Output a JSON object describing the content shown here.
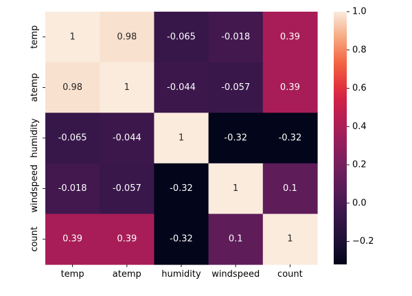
{
  "chart_data": {
    "type": "heatmap",
    "title": "",
    "xlabel": "",
    "ylabel": "",
    "x_categories": [
      "temp",
      "atemp",
      "humidity",
      "windspeed",
      "count"
    ],
    "y_categories": [
      "temp",
      "atemp",
      "humidity",
      "windspeed",
      "count"
    ],
    "values": [
      [
        1,
        0.98,
        -0.065,
        -0.018,
        0.39
      ],
      [
        0.98,
        1,
        -0.044,
        -0.057,
        0.39
      ],
      [
        -0.065,
        -0.044,
        1,
        -0.32,
        -0.32
      ],
      [
        -0.018,
        -0.057,
        -0.32,
        1,
        0.1
      ],
      [
        0.39,
        0.39,
        -0.32,
        0.1,
        1
      ]
    ],
    "annotations": [
      [
        "1",
        "0.98",
        "-0.065",
        "-0.018",
        "0.39"
      ],
      [
        "0.98",
        "1",
        "-0.044",
        "-0.057",
        "0.39"
      ],
      [
        "-0.065",
        "-0.044",
        "1",
        "-0.32",
        "-0.32"
      ],
      [
        "-0.018",
        "-0.057",
        "-0.32",
        "1",
        "0.1"
      ],
      [
        "0.39",
        "0.39",
        "-0.32",
        "0.1",
        "1"
      ]
    ],
    "colormap": "rocket",
    "color_range": [
      -0.32,
      1
    ],
    "colorbar_ticks": [
      -0.2,
      0.0,
      0.2,
      0.4,
      0.6,
      0.8,
      1.0
    ],
    "colorbar_tick_labels": [
      "−0.2",
      "0.0",
      "0.2",
      "0.4",
      "0.6",
      "0.8",
      "1.0"
    ],
    "colorbar_placement": "right",
    "grid": false,
    "annotation_text_colors": {
      "dark_cell": "#ffffff",
      "light_cell": "#262626"
    }
  }
}
